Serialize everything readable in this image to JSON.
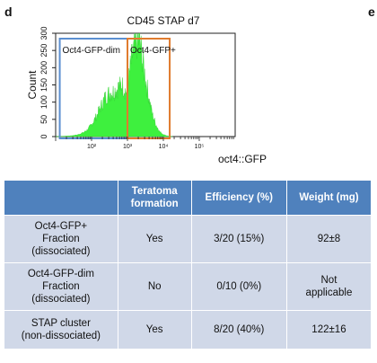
{
  "panel_labels": {
    "left": "d",
    "right": "e"
  },
  "chart_data": {
    "type": "histogram",
    "title": "CD45 STAP d7",
    "xlabel": "oct4::GFP",
    "ylabel": "Count",
    "x_scale": "log",
    "xlim": [
      10,
      1000000
    ],
    "ylim": [
      0,
      300
    ],
    "y_ticks": [
      0,
      50,
      100,
      150,
      200,
      250,
      300
    ],
    "y_tick_labels": [
      "0",
      "50",
      "100",
      "150",
      "200",
      "250",
      "300"
    ],
    "x_ticks": [
      100,
      1000,
      10000,
      100000
    ],
    "x_tick_labels": [
      "10²",
      "10³",
      "10⁴",
      "10⁵"
    ],
    "histogram_profile": [
      [
        10,
        0
      ],
      [
        25,
        2
      ],
      [
        40,
        5
      ],
      [
        60,
        12
      ],
      [
        80,
        22
      ],
      [
        100,
        35
      ],
      [
        130,
        55
      ],
      [
        170,
        80
      ],
      [
        230,
        110
      ],
      [
        300,
        125
      ],
      [
        400,
        130
      ],
      [
        500,
        138
      ],
      [
        600,
        145
      ],
      [
        700,
        150
      ],
      [
        800,
        140
      ],
      [
        950,
        128
      ],
      [
        1000,
        135
      ],
      [
        1200,
        200
      ],
      [
        1400,
        240
      ],
      [
        1600,
        255
      ],
      [
        1800,
        275
      ],
      [
        2000,
        285
      ],
      [
        2300,
        262
      ],
      [
        2700,
        215
      ],
      [
        3200,
        165
      ],
      [
        4000,
        110
      ],
      [
        5000,
        62
      ],
      [
        6500,
        30
      ],
      [
        8000,
        14
      ],
      [
        10000,
        6
      ],
      [
        13000,
        2
      ],
      [
        18000,
        0
      ]
    ],
    "gates": [
      {
        "label": "Oct4-GFP-dim",
        "range": [
          13,
          1000
        ],
        "color": "#5b8fd0"
      },
      {
        "label": "Oct4-GFP+",
        "range": [
          1000,
          15000
        ],
        "color": "#e07b2e"
      }
    ],
    "fill_color": "#3ef03e"
  },
  "table": {
    "headers": [
      "",
      "Teratoma formation",
      "Efficiency (%)",
      "Weight  (mg)"
    ],
    "rows": [
      {
        "cells": [
          [
            "Oct4-GFP+",
            "Fraction",
            "(dissociated)"
          ],
          [
            "Yes"
          ],
          [
            "3/20 (15%)"
          ],
          [
            "92±8"
          ]
        ]
      },
      {
        "cells": [
          [
            "Oct4-GFP-dim",
            "Fraction",
            "(dissociated)"
          ],
          [
            "No"
          ],
          [
            "0/10 (0%)"
          ],
          [
            "Not",
            "applicable"
          ]
        ]
      },
      {
        "cells": [
          [
            "STAP cluster",
            "(non-dissociated)"
          ],
          [
            "Yes"
          ],
          [
            "8/20 (40%)"
          ],
          [
            "122±16"
          ]
        ]
      }
    ]
  }
}
